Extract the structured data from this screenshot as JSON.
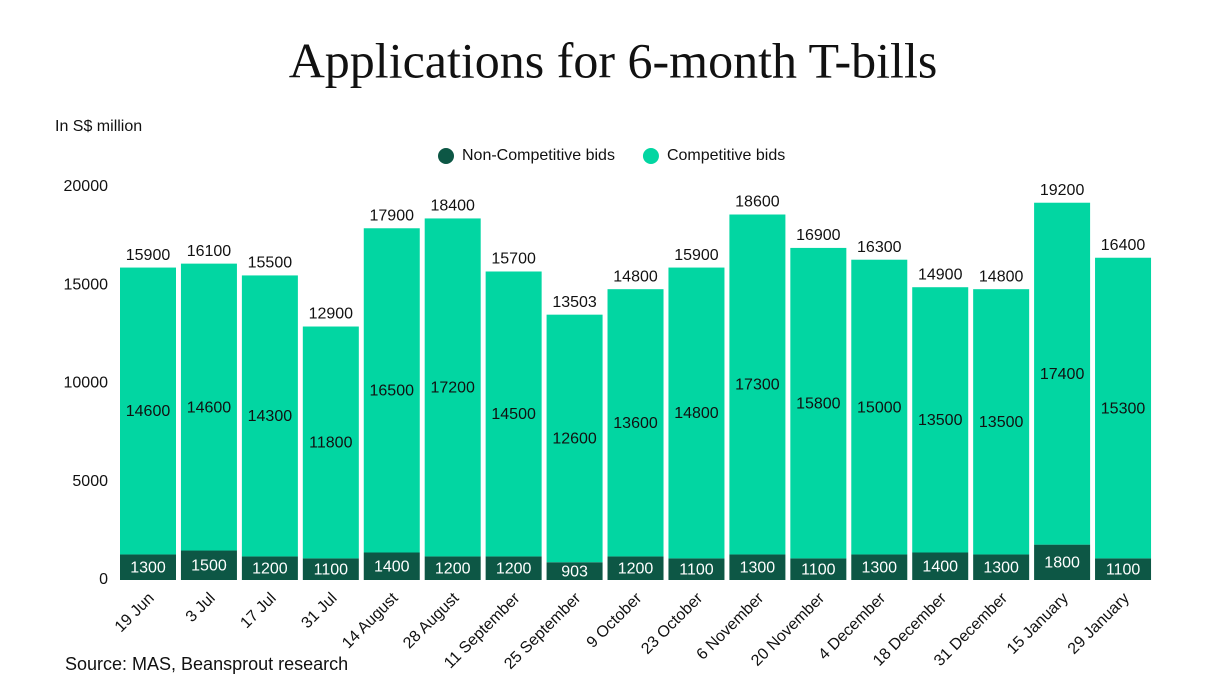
{
  "chart_data": {
    "type": "stacked_bar",
    "title": "Applications for 6-month T-bills",
    "y_label": "In S$ million",
    "source": "Source: MAS, Beansprout research",
    "categories": [
      "19 Jun",
      "3 Jul",
      "17 Jul",
      "31 Jul",
      "14 August",
      "28 August",
      "11 September",
      "25 September",
      "9 October",
      "23 October",
      "6 November",
      "20 November",
      "4 December",
      "18 December",
      "31 December",
      "15 January",
      "29 January"
    ],
    "series": [
      {
        "name": "Non-Competitive bids",
        "color": "#0d5745",
        "values": [
          1300,
          1500,
          1200,
          1100,
          1400,
          1200,
          1200,
          903,
          1200,
          1100,
          1300,
          1100,
          1300,
          1400,
          1300,
          1800,
          1100
        ]
      },
      {
        "name": "Competitive bids",
        "color": "#02d6a2",
        "values": [
          14600,
          14600,
          14300,
          11800,
          16500,
          17200,
          14500,
          12600,
          13600,
          14800,
          17300,
          15800,
          15000,
          13500,
          13500,
          17400,
          15300
        ]
      }
    ],
    "totals": [
      15900,
      16100,
      15500,
      12900,
      17900,
      18400,
      15700,
      13503,
      14800,
      15900,
      18600,
      16900,
      16300,
      14900,
      14800,
      19200,
      16400
    ],
    "ylim": [
      0,
      20000
    ],
    "yticks": [
      0,
      5000,
      10000,
      15000,
      20000
    ],
    "legend": "top",
    "grid": false
  }
}
